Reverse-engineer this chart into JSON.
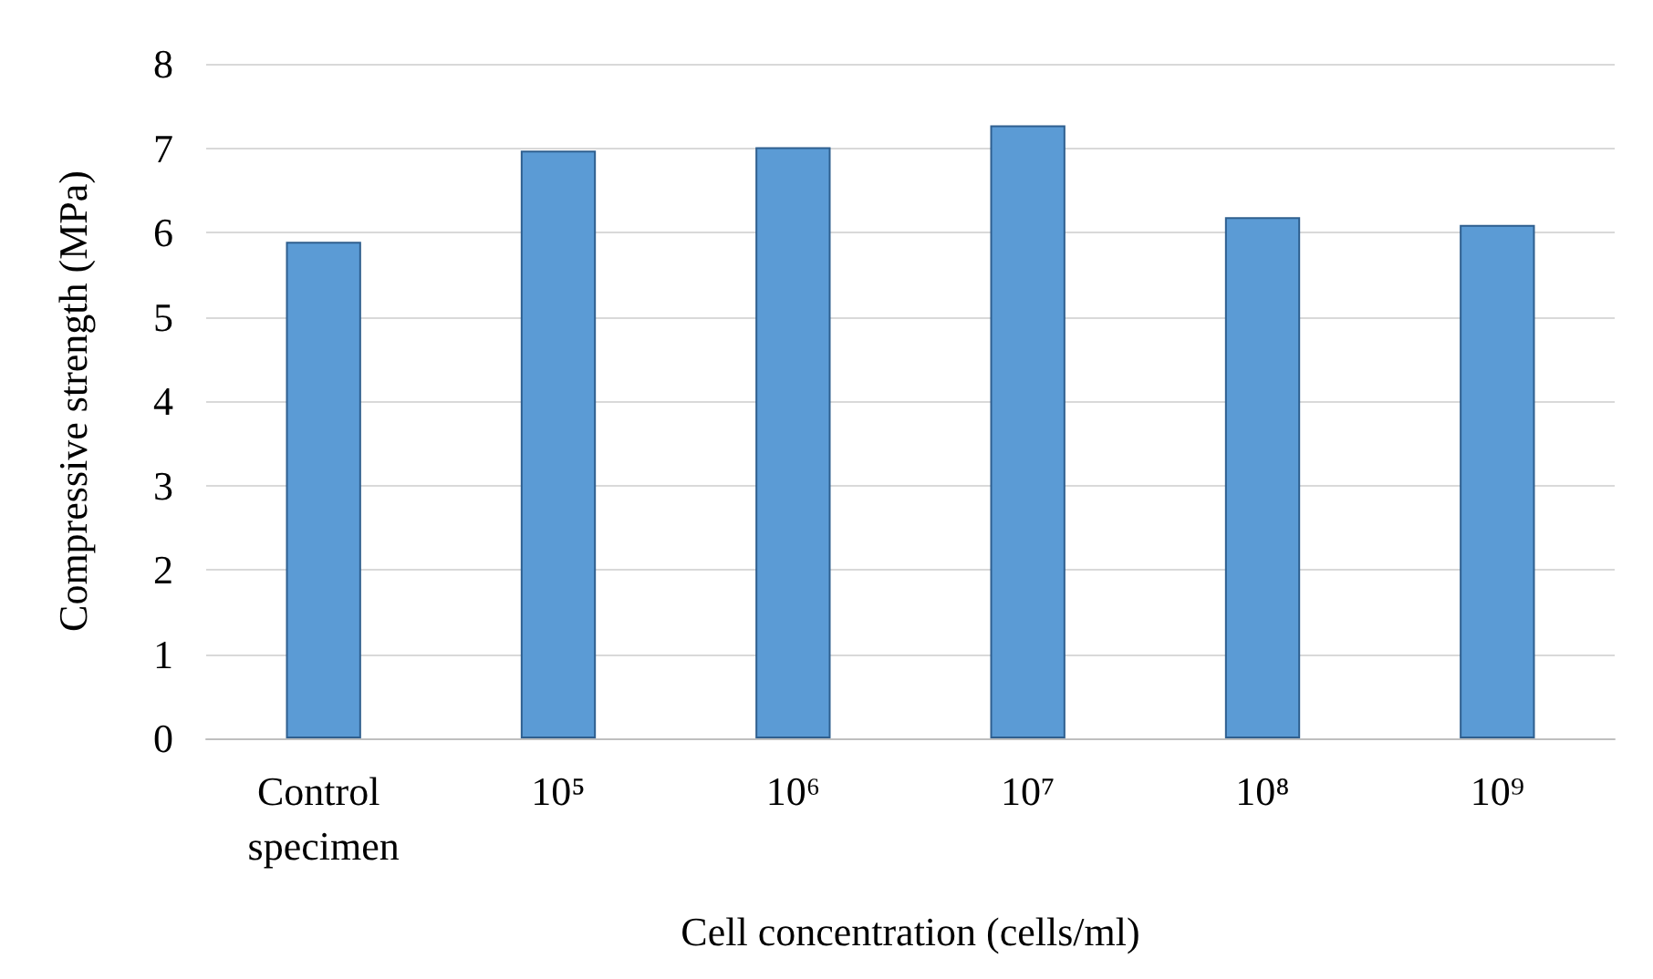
{
  "chart_data": {
    "type": "bar",
    "xlabel": "Cell concentration (cells/ml)",
    "ylabel": "Compressive strength (MPa)",
    "categories": [
      "Control specimen",
      "10⁵",
      "10⁶",
      "10⁷",
      "10⁸",
      "10⁹"
    ],
    "values": [
      5.89,
      6.97,
      7.01,
      7.27,
      6.18,
      6.09
    ],
    "color": "#5b9bd5",
    "ylim": [
      0,
      8
    ],
    "yticks": [
      0,
      1,
      2,
      3,
      4,
      5,
      6,
      7,
      8
    ],
    "grid": "y"
  }
}
